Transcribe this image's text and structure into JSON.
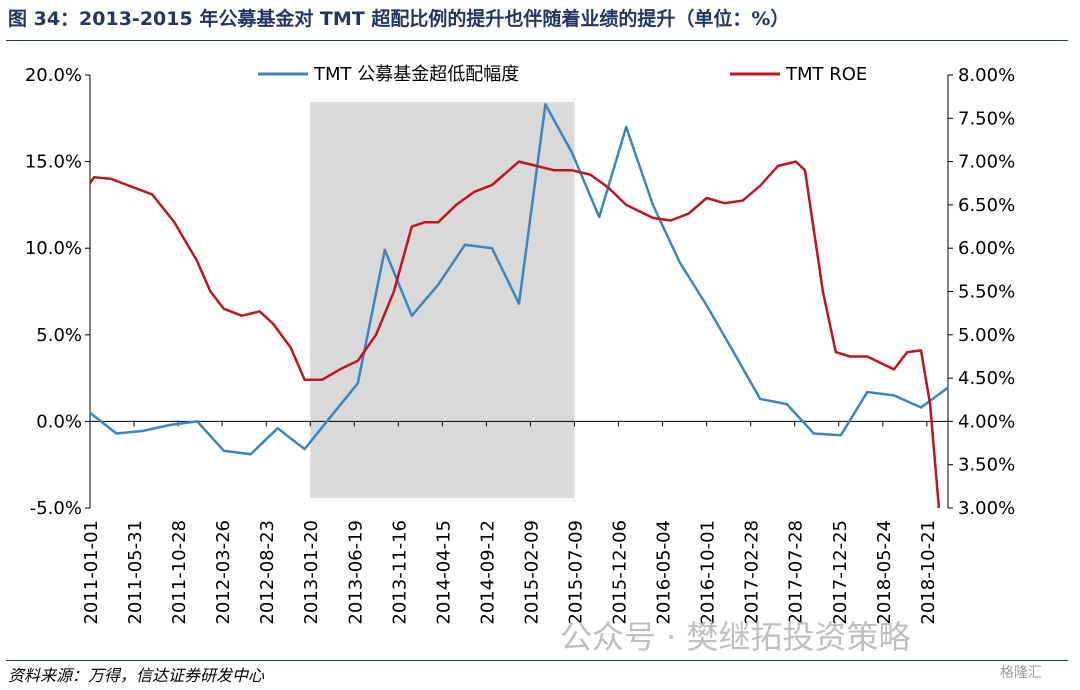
{
  "header": {
    "title": "图 34：2013-2015 年公募基金对 TMT 超配比例的提升也伴随着业绩的提升（单位：%）"
  },
  "footer": {
    "source": "资料来源：万得，信达证券研发中心",
    "watermark": "公众号 · 樊继拓投资策略",
    "watermark2": "格隆汇"
  },
  "colors": {
    "overweight": "#3a86c0",
    "roe": "#c0141f",
    "shade": "#d9d9d9"
  },
  "chart_data": {
    "type": "line",
    "title": "",
    "xlabel": "",
    "ylabel": "",
    "x": [
      "2011-01-01",
      "2011-05-31",
      "2011-10-28",
      "2012-03-26",
      "2012-08-23",
      "2013-01-20",
      "2013-06-19",
      "2013-11-16",
      "2014-04-15",
      "2014-09-12",
      "2015-02-09",
      "2015-07-09",
      "2015-12-06",
      "2016-05-04",
      "2016-10-01",
      "2017-02-28",
      "2017-07-28",
      "2017-12-25",
      "2018-05-24",
      "2018-10-21"
    ],
    "y_left_lim": [
      -5,
      20
    ],
    "y_left_ticks": [
      "20.0%",
      "15.0%",
      "10.0%",
      "5.0%",
      "0.0%",
      "-5.0%"
    ],
    "y_left_tick_values": [
      20,
      15,
      10,
      5,
      0,
      -5
    ],
    "y_right_lim": [
      3.0,
      8.0
    ],
    "y_right_ticks": [
      "8.00%",
      "7.50%",
      "7.00%",
      "6.50%",
      "6.00%",
      "5.50%",
      "5.00%",
      "4.50%",
      "4.00%",
      "3.50%",
      "3.00%"
    ],
    "y_right_tick_values": [
      8.0,
      7.5,
      7.0,
      6.5,
      6.0,
      5.5,
      5.0,
      4.5,
      4.0,
      3.5,
      3.0
    ],
    "shaded_range": [
      "2013-01-20",
      "2015-07-09"
    ],
    "legend_position": "top",
    "series": [
      {
        "name": "TMT 公募基金超低配幅度",
        "axis": "left",
        "color": "#3a86c0",
        "points": [
          [
            "2011-01-01",
            0.5
          ],
          [
            "2011-04-01",
            -0.7
          ],
          [
            "2011-07-01",
            -0.55
          ],
          [
            "2011-10-01",
            -0.2
          ],
          [
            "2012-01-01",
            0.0
          ],
          [
            "2012-04-01",
            -1.7
          ],
          [
            "2012-07-01",
            -1.9
          ],
          [
            "2012-10-01",
            -0.4
          ],
          [
            "2013-01-01",
            -1.6
          ],
          [
            "2013-04-01",
            0.3
          ],
          [
            "2013-07-01",
            2.2
          ],
          [
            "2013-10-01",
            9.9
          ],
          [
            "2014-01-01",
            6.1
          ],
          [
            "2014-04-01",
            7.9
          ],
          [
            "2014-07-01",
            10.2
          ],
          [
            "2014-10-01",
            10.0
          ],
          [
            "2015-01-01",
            6.8
          ],
          [
            "2015-04-01",
            18.3
          ],
          [
            "2015-07-01",
            15.5
          ],
          [
            "2015-10-01",
            11.8
          ],
          [
            "2016-01-01",
            17.0
          ],
          [
            "2016-04-01",
            12.5
          ],
          [
            "2016-07-01",
            9.2
          ],
          [
            "2016-10-01",
            6.7
          ],
          [
            "2017-01-01",
            4.0
          ],
          [
            "2017-04-01",
            1.3
          ],
          [
            "2017-07-01",
            1.0
          ],
          [
            "2017-10-01",
            -0.7
          ],
          [
            "2018-01-01",
            -0.8
          ],
          [
            "2018-04-01",
            1.7
          ],
          [
            "2018-07-01",
            1.5
          ],
          [
            "2018-10-01",
            0.8
          ],
          [
            "2019-01-01",
            1.95
          ]
        ]
      },
      {
        "name": "TMT ROE",
        "axis": "right",
        "color": "#c0141f",
        "points": [
          [
            "2011-01-01",
            6.75
          ],
          [
            "2011-01-15",
            6.82
          ],
          [
            "2011-03-15",
            6.8
          ],
          [
            "2011-05-15",
            6.72
          ],
          [
            "2011-08-01",
            6.62
          ],
          [
            "2011-10-15",
            6.3
          ],
          [
            "2012-01-01",
            5.85
          ],
          [
            "2012-02-15",
            5.5
          ],
          [
            "2012-04-01",
            5.3
          ],
          [
            "2012-06-01",
            5.22
          ],
          [
            "2012-08-01",
            5.27
          ],
          [
            "2012-09-15",
            5.13
          ],
          [
            "2012-11-15",
            4.85
          ],
          [
            "2013-01-01",
            4.48
          ],
          [
            "2013-03-01",
            4.48
          ],
          [
            "2013-05-01",
            4.6
          ],
          [
            "2013-07-01",
            4.7
          ],
          [
            "2013-09-01",
            5.0
          ],
          [
            "2013-11-01",
            5.5
          ],
          [
            "2014-01-01",
            6.25
          ],
          [
            "2014-02-15",
            6.3
          ],
          [
            "2014-04-01",
            6.3
          ],
          [
            "2014-06-01",
            6.5
          ],
          [
            "2014-08-01",
            6.65
          ],
          [
            "2014-10-01",
            6.73
          ],
          [
            "2015-01-01",
            7.0
          ],
          [
            "2015-03-01",
            6.95
          ],
          [
            "2015-05-01",
            6.9
          ],
          [
            "2015-07-01",
            6.9
          ],
          [
            "2015-09-01",
            6.85
          ],
          [
            "2015-11-01",
            6.7
          ],
          [
            "2016-01-01",
            6.5
          ],
          [
            "2016-04-01",
            6.35
          ],
          [
            "2016-06-01",
            6.32
          ],
          [
            "2016-08-01",
            6.4
          ],
          [
            "2016-10-01",
            6.58
          ],
          [
            "2016-12-01",
            6.52
          ],
          [
            "2017-02-01",
            6.55
          ],
          [
            "2017-04-01",
            6.72
          ],
          [
            "2017-06-01",
            6.95
          ],
          [
            "2017-08-01",
            7.0
          ],
          [
            "2017-09-01",
            6.9
          ],
          [
            "2017-11-01",
            5.5
          ],
          [
            "2017-12-15",
            4.8
          ],
          [
            "2018-02-01",
            4.75
          ],
          [
            "2018-04-01",
            4.75
          ],
          [
            "2018-07-01",
            4.6
          ],
          [
            "2018-08-15",
            4.8
          ],
          [
            "2018-10-01",
            4.82
          ],
          [
            "2018-11-01",
            4.2
          ],
          [
            "2018-12-01",
            3.0
          ]
        ]
      }
    ]
  }
}
